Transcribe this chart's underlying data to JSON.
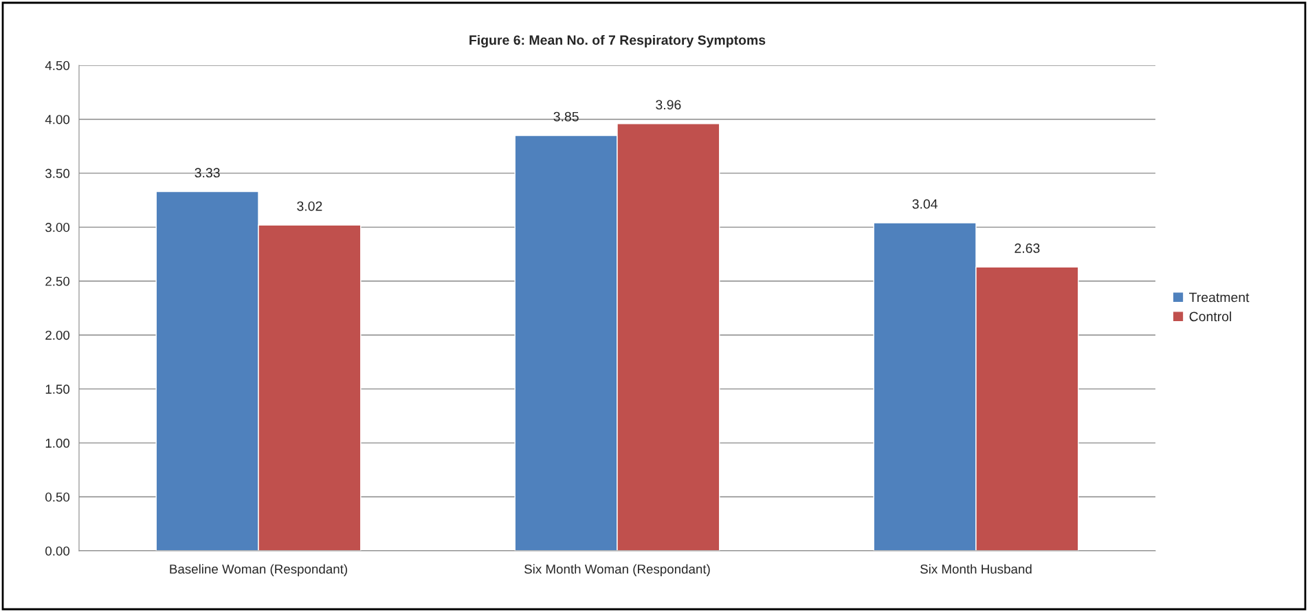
{
  "chart_data": {
    "type": "bar",
    "title": "Figure 6: Mean No. of 7 Respiratory Symptoms",
    "categories": [
      "Baseline Woman (Respondant)",
      "Six Month Woman (Respondant)",
      "Six Month Husband"
    ],
    "series": [
      {
        "name": "Treatment",
        "color": "#4f81bd",
        "values": [
          3.33,
          3.85,
          3.04
        ]
      },
      {
        "name": "Control",
        "color": "#c0504d",
        "values": [
          3.02,
          3.96,
          2.63
        ]
      }
    ],
    "ylim": [
      0,
      4.5
    ],
    "yticks": [
      {
        "value": 0,
        "label": "0.00"
      },
      {
        "value": 0.5,
        "label": "0.50"
      },
      {
        "value": 1,
        "label": "1.00"
      },
      {
        "value": 1.5,
        "label": "1.50"
      },
      {
        "value": 2,
        "label": "2.00"
      },
      {
        "value": 2.5,
        "label": "2.50"
      },
      {
        "value": 3,
        "label": "3.00"
      },
      {
        "value": 3.5,
        "label": "3.50"
      },
      {
        "value": 4,
        "label": "4.00"
      },
      {
        "value": 4.5,
        "label": "4.50"
      }
    ],
    "grid": "y",
    "legend": "right",
    "data_labels": true
  }
}
